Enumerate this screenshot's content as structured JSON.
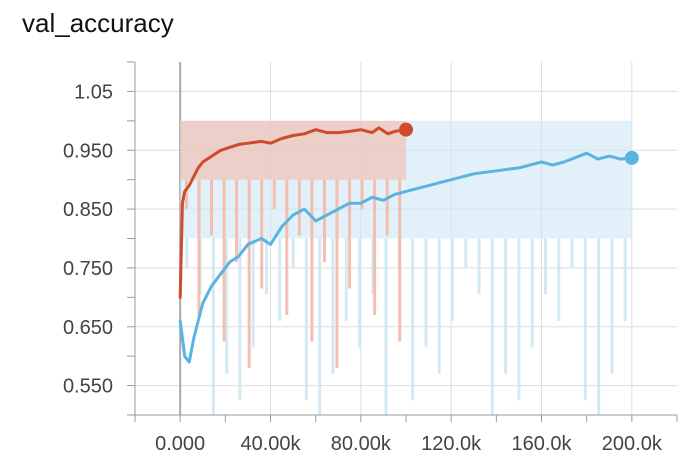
{
  "title": "val_accuracy",
  "chart_data": {
    "type": "line",
    "title": "val_accuracy",
    "xlabel": "",
    "ylabel": "",
    "xlim": [
      -20000,
      220000
    ],
    "ylim": [
      0.5,
      1.1
    ],
    "grid": true,
    "x_ticks": [
      0,
      40000,
      80000,
      120000,
      160000,
      200000
    ],
    "x_tick_labels": [
      "0.000",
      "40.00k",
      "80.00k",
      "120.0k",
      "160.0k",
      "200.0k"
    ],
    "y_ticks": [
      0.55,
      0.65,
      0.75,
      0.85,
      0.95,
      1.05
    ],
    "y_tick_labels": [
      "0.550",
      "0.650",
      "0.750",
      "0.850",
      "0.950",
      "1.05"
    ],
    "series": [
      {
        "color": "#d04a2c",
        "band_color": "#f3b9a8",
        "x": [
          0,
          1000,
          2000,
          4000,
          6000,
          8000,
          10000,
          14000,
          18000,
          22000,
          26000,
          30000,
          36000,
          40000,
          45000,
          50000,
          55000,
          60000,
          65000,
          70000,
          75000,
          80000,
          85000,
          88000,
          92000,
          95000,
          100000
        ],
        "values": [
          0.7,
          0.86,
          0.88,
          0.89,
          0.905,
          0.92,
          0.93,
          0.94,
          0.95,
          0.955,
          0.96,
          0.962,
          0.965,
          0.962,
          0.97,
          0.975,
          0.978,
          0.985,
          0.98,
          0.98,
          0.982,
          0.985,
          0.98,
          0.988,
          0.978,
          0.982,
          0.985
        ],
        "band_upper": 1.0,
        "band_lower": 0.9
      },
      {
        "color": "#5ab4e0",
        "band_color": "#cfe8f5",
        "x": [
          0,
          2000,
          4000,
          6000,
          8000,
          10000,
          14000,
          18000,
          22000,
          26000,
          30000,
          36000,
          40000,
          45000,
          50000,
          55000,
          60000,
          65000,
          70000,
          75000,
          80000,
          85000,
          90000,
          95000,
          100000,
          110000,
          120000,
          130000,
          140000,
          150000,
          160000,
          165000,
          170000,
          180000,
          185000,
          190000,
          195000,
          200000
        ],
        "values": [
          0.66,
          0.6,
          0.59,
          0.63,
          0.66,
          0.69,
          0.72,
          0.74,
          0.76,
          0.77,
          0.79,
          0.8,
          0.79,
          0.82,
          0.84,
          0.85,
          0.83,
          0.84,
          0.85,
          0.86,
          0.86,
          0.87,
          0.865,
          0.875,
          0.88,
          0.89,
          0.9,
          0.91,
          0.915,
          0.92,
          0.93,
          0.925,
          0.93,
          0.945,
          0.935,
          0.94,
          0.935,
          0.937
        ],
        "band_upper": 1.0,
        "band_lower": 0.8
      }
    ]
  }
}
